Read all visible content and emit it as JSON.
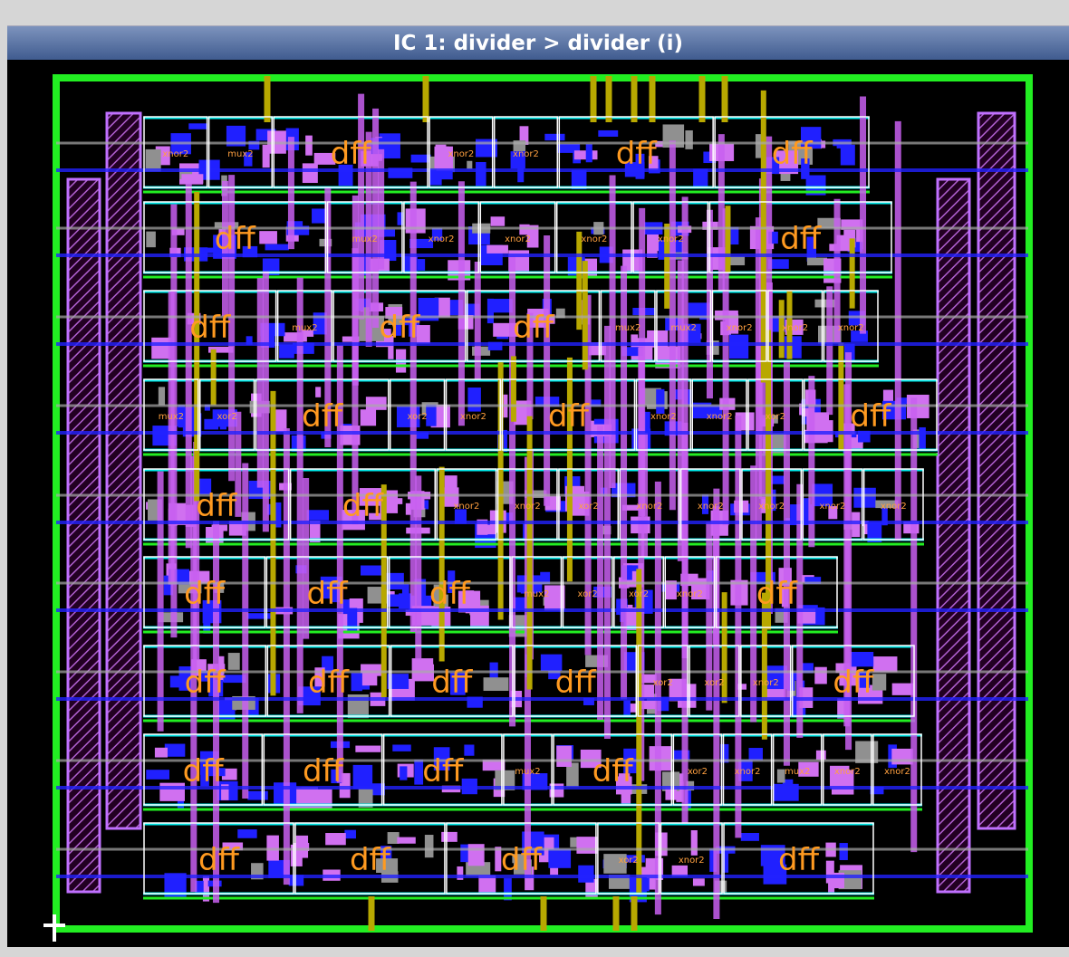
{
  "title": "IC 1: divider > divider (i)",
  "rows": [
    {
      "cells": [
        "xnor2",
        "mux2",
        "dff",
        "xnor2",
        "xnor2",
        "dff",
        "dff"
      ]
    },
    {
      "cells": [
        "dff",
        "mux2",
        "xnor2",
        "xnor2",
        "xnor2",
        "xnor2",
        "dff"
      ]
    },
    {
      "cells": [
        "dff",
        "mux2",
        "dff",
        "dff",
        "mux2",
        "mux2",
        "xnor2",
        "xnor2",
        "xnor2"
      ]
    },
    {
      "cells": [
        "mux2",
        "xor2",
        "dff",
        "xor2",
        "xnor2",
        "dff",
        "xnor2",
        "xnor2",
        "xor2",
        "dff"
      ]
    },
    {
      "cells": [
        "dff",
        "dff",
        "xnor2",
        "xnor2",
        "xor2",
        "xnor2",
        "xnor2",
        "xnor2",
        "xnor2",
        "xnor2"
      ]
    },
    {
      "cells": [
        "dff",
        "dff",
        "dff",
        "mux2",
        "xor2",
        "xor2",
        "xnor2",
        "dff"
      ]
    },
    {
      "cells": [
        "dff",
        "dff",
        "dff",
        "dff",
        "xor2",
        "xor2",
        "xnor2",
        "dff"
      ]
    },
    {
      "cells": [
        "dff",
        "dff",
        "dff",
        "mux2",
        "dff",
        "xor2",
        "xnor2",
        "mux2",
        "xnor2",
        "xnor2"
      ]
    },
    {
      "cells": [
        "dff",
        "dff",
        "dff",
        "xor2",
        "xnor2",
        "dff"
      ]
    }
  ]
}
